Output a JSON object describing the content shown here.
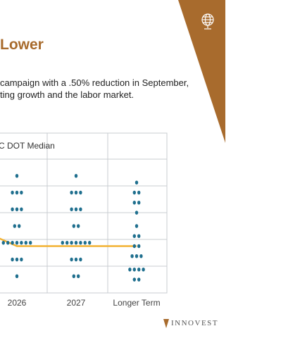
{
  "slide": {
    "title": "Lower",
    "body_lines": [
      "campaign with a .50% reduction in September,",
      "ting growth and the labor market."
    ]
  },
  "banner": {
    "icon": "globe-icon"
  },
  "footer": {
    "logo_text": "INNOVEST"
  },
  "colors": {
    "accent_brown": "#a86b2d",
    "dot_teal": "#1f6f8e",
    "median_line": "#f2b233",
    "grid": "#c8ccd0",
    "text_dark": "#222222"
  },
  "chart_data": {
    "type": "scatter",
    "subtype": "dot-plot",
    "title": "C DOT Median",
    "categories": [
      "2026",
      "2027",
      "Longer Term"
    ],
    "dots": [
      {
        "category": "2026",
        "y": 1,
        "n": 1
      },
      {
        "category": "2026",
        "y": 2,
        "n": 3
      },
      {
        "category": "2026",
        "y": 3,
        "n": 3
      },
      {
        "category": "2026",
        "y": 4,
        "n": 2
      },
      {
        "category": "2026",
        "y": 5,
        "n": 7
      },
      {
        "category": "2026",
        "y": 6,
        "n": 3
      },
      {
        "category": "2026",
        "y": 7,
        "n": 1
      },
      {
        "category": "2027",
        "y": 1,
        "n": 1
      },
      {
        "category": "2027",
        "y": 2,
        "n": 3
      },
      {
        "category": "2027",
        "y": 3,
        "n": 3
      },
      {
        "category": "2027",
        "y": 4,
        "n": 2
      },
      {
        "category": "2027",
        "y": 5,
        "n": 7
      },
      {
        "category": "2027",
        "y": 6,
        "n": 3
      },
      {
        "category": "2027",
        "y": 7,
        "n": 2
      },
      {
        "category": "Longer Term",
        "y": 1.4,
        "n": 1
      },
      {
        "category": "Longer Term",
        "y": 2.0,
        "n": 2
      },
      {
        "category": "Longer Term",
        "y": 2.6,
        "n": 2
      },
      {
        "category": "Longer Term",
        "y": 3.2,
        "n": 1
      },
      {
        "category": "Longer Term",
        "y": 4.0,
        "n": 1
      },
      {
        "category": "Longer Term",
        "y": 4.6,
        "n": 2
      },
      {
        "category": "Longer Term",
        "y": 5.2,
        "n": 2
      },
      {
        "category": "Longer Term",
        "y": 5.8,
        "n": 3
      },
      {
        "category": "Longer Term",
        "y": 6.6,
        "n": 4
      },
      {
        "category": "Longer Term",
        "y": 7.2,
        "n": 2
      }
    ],
    "median": [
      {
        "category": "prior",
        "y": 4.2
      },
      {
        "category": "2026",
        "y": 5.2
      },
      {
        "category": "2027",
        "y": 5.2
      },
      {
        "category": "Longer Term",
        "y": 5.2
      }
    ],
    "ylim": [
      0,
      8
    ],
    "grid": true
  }
}
